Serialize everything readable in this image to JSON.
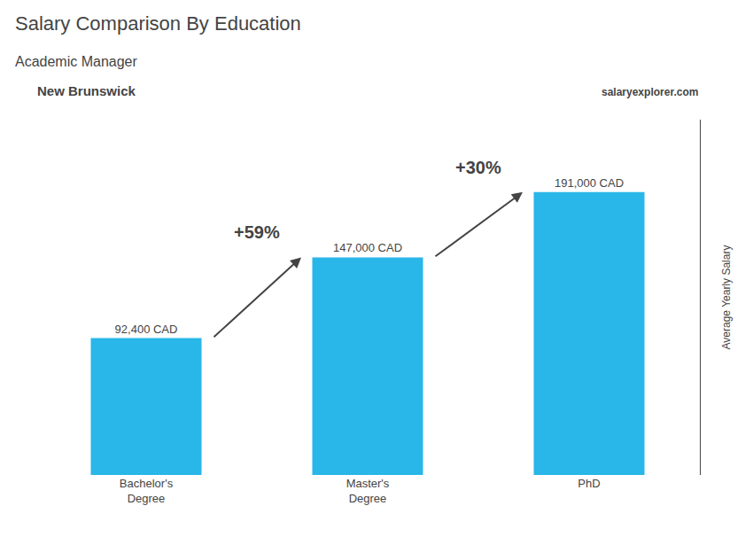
{
  "chart_data": {
    "type": "bar",
    "title": "Salary Comparison By Education",
    "subtitle": "Academic Manager",
    "y_label": "Average Yearly Salary",
    "categories": [
      "Bachelor's\nDegree",
      "Master's\nDegree",
      "PhD"
    ],
    "values": [
      92400,
      147000,
      191000
    ],
    "value_labels": [
      "92,400 CAD",
      "147,000 CAD",
      "191,000 CAD"
    ],
    "data_labels": true,
    "color": "#29b6e8",
    "ylim": [
      0,
      240000
    ],
    "tick_labels": "x",
    "grid": false,
    "annotations": [
      {
        "text": "New Brunswick"
      },
      {
        "text": "salary"
      },
      {
        "text": "explorer.com"
      },
      {
        "text": "+59%",
        "from": "Bachelor's\nDegree",
        "to": "Master's\nDegree"
      },
      {
        "text": "+30%",
        "from": "Master's\nDegree",
        "to": "PhD"
      }
    ]
  }
}
